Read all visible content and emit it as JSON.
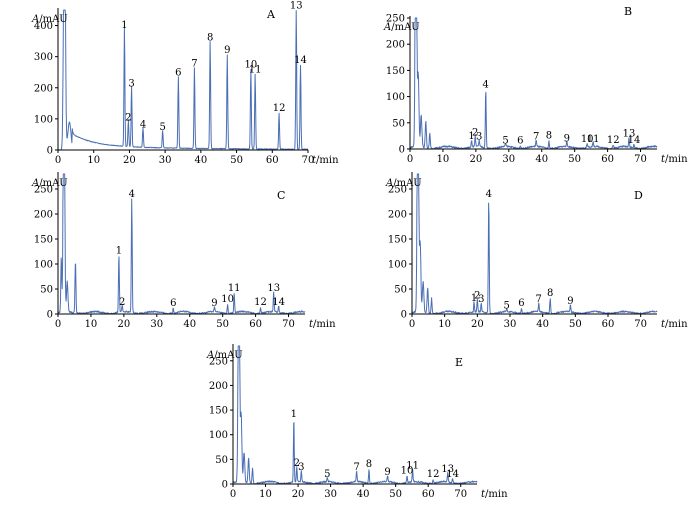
{
  "figure": {
    "ylabel_italic": "A",
    "ylabel_unit": "/mAU",
    "xlabel_italic": "t",
    "xlabel_unit": "/min",
    "trace_color": "#4a6fb5"
  },
  "chart_data": [
    {
      "type": "line",
      "panel": "A",
      "xlabel": "t/min",
      "ylabel": "A/mAU",
      "xlim": [
        0,
        70
      ],
      "ylim": [
        0,
        450
      ],
      "xticks": [
        0,
        10,
        20,
        30,
        40,
        50,
        60,
        70
      ],
      "yticks": [
        0,
        100,
        200,
        300,
        400
      ],
      "peaks": [
        {
          "label": "1",
          "x": 18.6,
          "y": 382
        },
        {
          "label": "2",
          "x": 19.7,
          "y": 85
        },
        {
          "label": "3",
          "x": 20.6,
          "y": 195
        },
        {
          "label": "4",
          "x": 23.8,
          "y": 62
        },
        {
          "label": "5",
          "x": 29.3,
          "y": 55
        },
        {
          "label": "6",
          "x": 33.7,
          "y": 230
        },
        {
          "label": "7",
          "x": 38.2,
          "y": 258
        },
        {
          "label": "8",
          "x": 42.6,
          "y": 343
        },
        {
          "label": "9",
          "x": 47.4,
          "y": 302
        },
        {
          "label": "10",
          "x": 54.0,
          "y": 255
        },
        {
          "label": "11",
          "x": 55.2,
          "y": 240
        },
        {
          "label": "12",
          "x": 61.9,
          "y": 115
        },
        {
          "label": "13",
          "x": 66.7,
          "y": 445
        },
        {
          "label": "14",
          "x": 67.9,
          "y": 270
        }
      ]
    },
    {
      "type": "line",
      "panel": "B",
      "xlabel": "t/min",
      "ylabel": "A/mAU",
      "xlim": [
        0,
        75
      ],
      "ylim": [
        0,
        250
      ],
      "xticks": [
        0,
        10,
        20,
        30,
        40,
        50,
        60,
        70
      ],
      "yticks": [
        0,
        50,
        100,
        150,
        200,
        250
      ],
      "peaks": [
        {
          "label": "1",
          "x": 18.7,
          "y": 13
        },
        {
          "label": "2",
          "x": 19.8,
          "y": 20
        },
        {
          "label": "3",
          "x": 21.0,
          "y": 12
        },
        {
          "label": "4",
          "x": 23.0,
          "y": 112
        },
        {
          "label": "5",
          "x": 29.0,
          "y": 5
        },
        {
          "label": "6",
          "x": 33.5,
          "y": 5
        },
        {
          "label": "7",
          "x": 38.3,
          "y": 12
        },
        {
          "label": "8",
          "x": 42.2,
          "y": 14
        },
        {
          "label": "9",
          "x": 47.6,
          "y": 9
        },
        {
          "label": "10",
          "x": 53.8,
          "y": 8
        },
        {
          "label": "11",
          "x": 55.6,
          "y": 8
        },
        {
          "label": "12",
          "x": 61.7,
          "y": 6
        },
        {
          "label": "13",
          "x": 66.5,
          "y": 18
        },
        {
          "label": "14",
          "x": 68.0,
          "y": 6
        }
      ]
    },
    {
      "type": "line",
      "panel": "C",
      "xlabel": "t/min",
      "ylabel": "A/mAU",
      "xlim": [
        0,
        75
      ],
      "ylim": [
        0,
        280
      ],
      "xticks": [
        0,
        10,
        20,
        30,
        40,
        50,
        60,
        70
      ],
      "yticks": [
        0,
        50,
        100,
        150,
        200,
        250
      ],
      "peaks": [
        {
          "label": "1",
          "x": 18.5,
          "y": 115
        },
        {
          "label": "2",
          "x": 19.5,
          "y": 12
        },
        {
          "label": "4",
          "x": 22.4,
          "y": 228
        },
        {
          "label": "6",
          "x": 35.0,
          "y": 10
        },
        {
          "label": "9",
          "x": 47.5,
          "y": 10
        },
        {
          "label": "10",
          "x": 51.5,
          "y": 18
        },
        {
          "label": "11",
          "x": 53.5,
          "y": 40
        },
        {
          "label": "12",
          "x": 61.5,
          "y": 12
        },
        {
          "label": "13",
          "x": 65.5,
          "y": 40
        },
        {
          "label": "14",
          "x": 67.0,
          "y": 12
        }
      ]
    },
    {
      "type": "line",
      "panel": "D",
      "xlabel": "t/min",
      "ylabel": "A/mAU",
      "xlim": [
        0,
        75
      ],
      "ylim": [
        0,
        280
      ],
      "xticks": [
        0,
        10,
        20,
        30,
        40,
        50,
        60,
        70
      ],
      "yticks": [
        0,
        50,
        100,
        150,
        200,
        250
      ],
      "peaks": [
        {
          "label": "1",
          "x": 19.0,
          "y": 20
        },
        {
          "label": "2",
          "x": 20.0,
          "y": 25
        },
        {
          "label": "3",
          "x": 21.2,
          "y": 18
        },
        {
          "label": "4",
          "x": 23.5,
          "y": 228
        },
        {
          "label": "5",
          "x": 29.0,
          "y": 5
        },
        {
          "label": "6",
          "x": 33.5,
          "y": 10
        },
        {
          "label": "7",
          "x": 38.8,
          "y": 18
        },
        {
          "label": "8",
          "x": 42.3,
          "y": 30
        },
        {
          "label": "9",
          "x": 48.5,
          "y": 14
        }
      ]
    },
    {
      "type": "line",
      "panel": "E",
      "xlabel": "t/min",
      "ylabel": "A/mAU",
      "xlim": [
        0,
        75
      ],
      "ylim": [
        0,
        280
      ],
      "xticks": [
        0,
        10,
        20,
        30,
        40,
        50,
        60,
        70
      ],
      "yticks": [
        0,
        50,
        100,
        150,
        200,
        250
      ],
      "peaks": [
        {
          "label": "1",
          "x": 18.7,
          "y": 130
        },
        {
          "label": "2",
          "x": 19.6,
          "y": 30
        },
        {
          "label": "3",
          "x": 21.0,
          "y": 22
        },
        {
          "label": "5",
          "x": 29.0,
          "y": 8
        },
        {
          "label": "7",
          "x": 38.0,
          "y": 22
        },
        {
          "label": "8",
          "x": 41.8,
          "y": 28
        },
        {
          "label": "9",
          "x": 47.5,
          "y": 12
        },
        {
          "label": "10",
          "x": 53.5,
          "y": 15
        },
        {
          "label": "11",
          "x": 55.2,
          "y": 25
        },
        {
          "label": "12",
          "x": 61.5,
          "y": 8
        },
        {
          "label": "13",
          "x": 66.0,
          "y": 18
        },
        {
          "label": "14",
          "x": 67.5,
          "y": 8
        }
      ]
    }
  ]
}
